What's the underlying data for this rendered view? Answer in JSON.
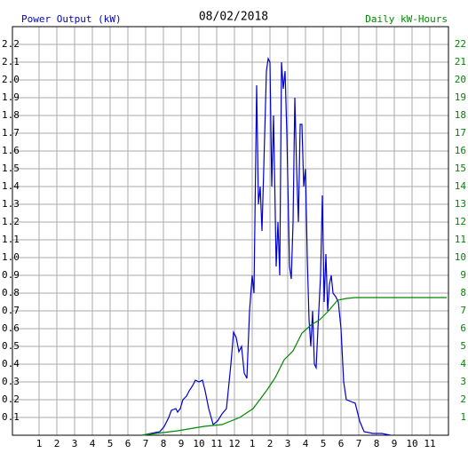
{
  "chart_data": {
    "type": "line",
    "title": "08/02/2018",
    "ylabel": "Power Output (kW)",
    "y2label": "Daily kW-Hours",
    "grid": true,
    "xlim": [
      -0.5,
      24.05
    ],
    "xticks": [
      1,
      2,
      3,
      4,
      5,
      6,
      7,
      8,
      9,
      10,
      11,
      12,
      {
        "value": 13,
        "label": "1"
      },
      {
        "value": 14,
        "label": "2"
      },
      {
        "value": 15,
        "label": "3"
      },
      {
        "value": 16,
        "label": "4"
      },
      {
        "value": 17,
        "label": "5"
      },
      {
        "value": 18,
        "label": "6"
      },
      {
        "value": 19,
        "label": "7"
      },
      {
        "value": 20,
        "label": "8"
      },
      {
        "value": 21,
        "label": "9"
      },
      {
        "value": 22,
        "label": "10"
      },
      {
        "value": 23,
        "label": "11"
      }
    ],
    "ylim": [
      0,
      2.3
    ],
    "yticks": [
      0.1,
      0.2,
      0.3,
      0.4,
      0.5,
      0.6,
      0.7,
      0.8,
      0.9,
      {
        "value": 1,
        "label": "1.0"
      },
      1.1,
      1.2,
      1.3,
      1.4,
      1.5,
      1.6,
      1.7,
      1.8,
      1.9,
      {
        "value": 2,
        "label": "2.0"
      },
      2.1,
      2.2
    ],
    "y2lim": [
      0,
      23
    ],
    "y2ticks": [
      1,
      2,
      3,
      4,
      5,
      6,
      7,
      8,
      9,
      10,
      11,
      12,
      13,
      14,
      15,
      16,
      17,
      18,
      19,
      20,
      21,
      22
    ],
    "series": [
      {
        "name": "Power Output (kW)",
        "color": "#0000cc",
        "x": [
          6.8,
          7.3,
          7.8,
          8.05,
          8.3,
          8.45,
          8.7,
          8.8,
          8.95,
          9.1,
          9.3,
          9.45,
          9.65,
          9.8,
          10.0,
          10.2,
          10.35,
          10.55,
          10.8,
          11.05,
          11.3,
          11.55,
          11.8,
          11.95,
          12.1,
          12.25,
          12.4,
          12.55,
          12.7,
          12.85,
          13.0,
          13.1,
          13.25,
          13.35,
          13.45,
          13.55,
          13.65,
          13.8,
          13.9,
          14.0,
          14.1,
          14.2,
          14.35,
          14.45,
          14.55,
          14.65,
          14.75,
          14.85,
          14.95,
          15.1,
          15.2,
          15.3,
          15.4,
          15.5,
          15.6,
          15.7,
          15.8,
          15.9,
          16.0,
          16.1,
          16.2,
          16.3,
          16.4,
          16.5,
          16.6,
          16.7,
          16.85,
          16.95,
          17.05,
          17.15,
          17.25,
          17.35,
          17.45,
          17.55,
          17.7,
          17.85,
          18.0,
          18.15,
          18.3,
          18.55,
          18.8,
          19.05,
          19.3,
          19.8,
          20.3,
          20.8
        ],
        "values": [
          0,
          0.01,
          0.02,
          0.05,
          0.1,
          0.14,
          0.15,
          0.13,
          0.15,
          0.2,
          0.22,
          0.25,
          0.28,
          0.31,
          0.3,
          0.31,
          0.25,
          0.15,
          0.06,
          0.08,
          0.12,
          0.15,
          0.4,
          0.58,
          0.55,
          0.47,
          0.5,
          0.35,
          0.32,
          0.7,
          0.9,
          0.8,
          1.97,
          1.3,
          1.4,
          1.15,
          1.5,
          2.05,
          2.12,
          2.1,
          1.4,
          1.8,
          0.95,
          1.2,
          0.9,
          2.1,
          1.95,
          2.05,
          1.7,
          0.95,
          0.88,
          1.2,
          1.9,
          1.5,
          1.2,
          1.75,
          1.75,
          1.4,
          1.5,
          1.0,
          0.65,
          0.5,
          0.7,
          0.4,
          0.38,
          0.6,
          0.9,
          1.35,
          0.75,
          1.02,
          0.7,
          0.85,
          0.9,
          0.8,
          0.78,
          0.75,
          0.6,
          0.3,
          0.2,
          0.19,
          0.18,
          0.08,
          0.02,
          0.01,
          0.01,
          0
        ]
      },
      {
        "name": "Daily kW-Hours",
        "color": "#008800",
        "axis": "y2",
        "x": [
          6.8,
          8.8,
          10.3,
          11.3,
          12.3,
          13.05,
          13.8,
          14.3,
          14.8,
          15.3,
          15.8,
          16.3,
          16.8,
          17.3,
          17.8,
          18.3,
          18.8,
          23.95
        ],
        "values": [
          0,
          0.25,
          0.5,
          0.6,
          1.0,
          1.5,
          2.5,
          3.25,
          4.25,
          4.75,
          5.75,
          6.2,
          6.5,
          7.0,
          7.6,
          7.7,
          7.75,
          7.75
        ]
      }
    ]
  }
}
